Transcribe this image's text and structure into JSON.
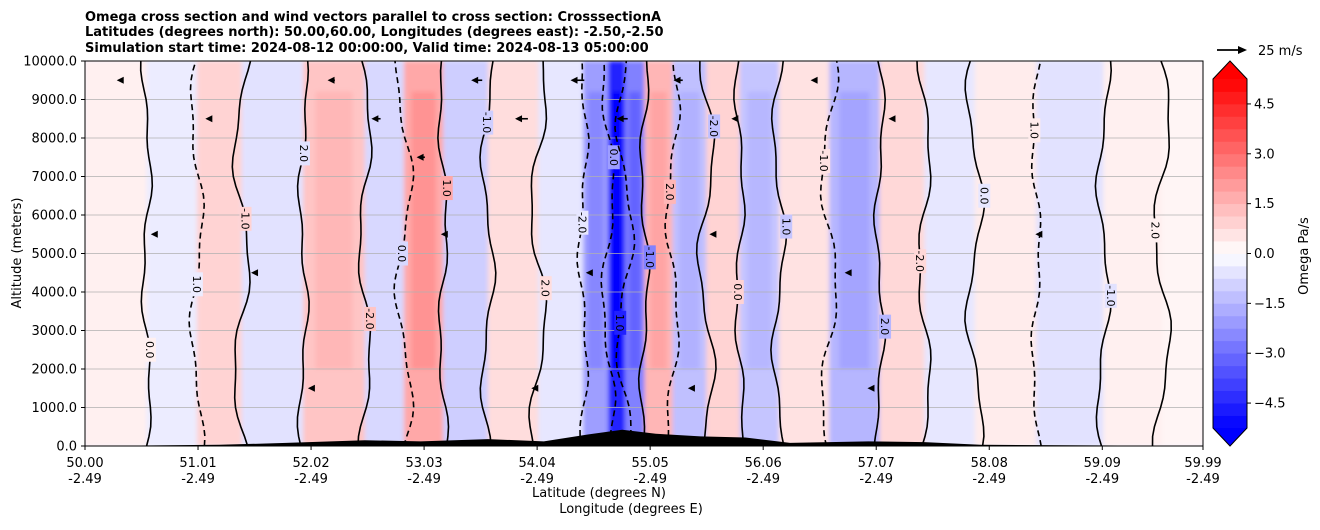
{
  "chart_data": {
    "type": "heatmap",
    "title_lines": [
      "Omega cross section and wind vectors parallel to cross section: CrosssectionA",
      "Latitudes (degrees north): 50.00,60.00, Longitudes (degrees east): -2.50,-2.50",
      "Simulation start time: 2024-08-12 00:00:00, Valid time: 2024-08-13 05:00:00"
    ],
    "ylabel": "Altitude (meters)",
    "xlabel_lines": [
      "Latitude (degrees N)",
      "Longitude (degrees E)"
    ],
    "ylim": [
      0,
      10000
    ],
    "y_ticks": [
      {
        "value": 0,
        "label": "0.0"
      },
      {
        "value": 1000,
        "label": "1000.0"
      },
      {
        "value": 2000,
        "label": "2000.0"
      },
      {
        "value": 3000,
        "label": "3000.0"
      },
      {
        "value": 4000,
        "label": "4000.0"
      },
      {
        "value": 5000,
        "label": "5000.0"
      },
      {
        "value": 6000,
        "label": "6000.0"
      },
      {
        "value": 7000,
        "label": "7000.0"
      },
      {
        "value": 8000,
        "label": "8000.0"
      },
      {
        "value": 9000,
        "label": "9000.0"
      },
      {
        "value": 10000,
        "label": "10000.0"
      }
    ],
    "xlim": [
      50.0,
      59.99
    ],
    "x_ticks": [
      {
        "lat": 50.0,
        "lat_label": "50.00",
        "lon_label": "-2.49"
      },
      {
        "lat": 51.01,
        "lat_label": "51.01",
        "lon_label": "-2.49"
      },
      {
        "lat": 52.02,
        "lat_label": "52.02",
        "lon_label": "-2.49"
      },
      {
        "lat": 53.03,
        "lat_label": "53.03",
        "lon_label": "-2.49"
      },
      {
        "lat": 54.04,
        "lat_label": "54.04",
        "lon_label": "-2.49"
      },
      {
        "lat": 55.05,
        "lat_label": "55.05",
        "lon_label": "-2.49"
      },
      {
        "lat": 56.06,
        "lat_label": "56.06",
        "lon_label": "-2.49"
      },
      {
        "lat": 57.07,
        "lat_label": "57.07",
        "lon_label": "-2.49"
      },
      {
        "lat": 58.08,
        "lat_label": "58.08",
        "lon_label": "-2.49"
      },
      {
        "lat": 59.09,
        "lat_label": "59.09",
        "lon_label": "-2.49"
      },
      {
        "lat": 59.99,
        "lat_label": "59.99",
        "lon_label": "-2.49"
      }
    ],
    "grid": "horizontal",
    "colorbar": {
      "label": "Omega Pa/s",
      "range": [
        -5.25,
        5.25
      ],
      "step": 0.375,
      "extend": "both",
      "ticks": [
        {
          "value": 4.5,
          "label": "4.5"
        },
        {
          "value": 3.0,
          "label": "3.0"
        },
        {
          "value": 1.5,
          "label": "1.5"
        },
        {
          "value": 0.0,
          "label": "0.0"
        },
        {
          "value": -1.5,
          "label": "−1.5"
        },
        {
          "value": -3.0,
          "label": "−3.0"
        },
        {
          "value": -4.5,
          "label": "−4.5"
        }
      ],
      "colors": {
        "negative": "#0000ff",
        "zero": "#ffffff",
        "positive": "#ff0000"
      }
    },
    "quiver_key": {
      "label": "25 m/s",
      "speed": 25
    },
    "omega_bands": [
      {
        "lat": 50.3,
        "omega": 0.3
      },
      {
        "lat": 50.8,
        "omega": -0.4
      },
      {
        "lat": 51.2,
        "omega": 0.9
      },
      {
        "lat": 51.6,
        "omega": -0.6
      },
      {
        "lat": 52.3,
        "omega": 1.2
      },
      {
        "lat": 52.7,
        "omega": -0.8
      },
      {
        "lat": 53.0,
        "omega": 1.8
      },
      {
        "lat": 53.4,
        "omega": -1.0
      },
      {
        "lat": 53.8,
        "omega": 0.7
      },
      {
        "lat": 54.3,
        "omega": -0.5
      },
      {
        "lat": 54.6,
        "omega": -2.0
      },
      {
        "lat": 54.75,
        "omega": -4.6
      },
      {
        "lat": 54.9,
        "omega": -2.6
      },
      {
        "lat": 55.1,
        "omega": 1.5
      },
      {
        "lat": 55.4,
        "omega": -1.3
      },
      {
        "lat": 55.7,
        "omega": 0.9
      },
      {
        "lat": 56.0,
        "omega": -1.2
      },
      {
        "lat": 56.4,
        "omega": 0.6
      },
      {
        "lat": 56.9,
        "omega": -1.5
      },
      {
        "lat": 57.3,
        "omega": 0.8
      },
      {
        "lat": 57.7,
        "omega": -0.5
      },
      {
        "lat": 58.2,
        "omega": 0.4
      },
      {
        "lat": 58.8,
        "omega": -0.6
      },
      {
        "lat": 59.4,
        "omega": 0.3
      },
      {
        "lat": 59.85,
        "omega": 0.2
      }
    ],
    "contour_labels": [
      "0.0",
      "1.0",
      "-1.0",
      "2.0",
      "-2.0"
    ],
    "wind_vectors": [
      {
        "lat": 50.3,
        "height": 9500,
        "u": -4
      },
      {
        "lat": 51.1,
        "height": 8500,
        "u": -6
      },
      {
        "lat": 52.2,
        "height": 9500,
        "u": -8
      },
      {
        "lat": 52.6,
        "height": 8500,
        "u": -10
      },
      {
        "lat": 53.0,
        "height": 7500,
        "u": -9
      },
      {
        "lat": 53.5,
        "height": 9500,
        "u": -12
      },
      {
        "lat": 53.9,
        "height": 8500,
        "u": -14
      },
      {
        "lat": 54.4,
        "height": 9500,
        "u": -15
      },
      {
        "lat": 54.8,
        "height": 8500,
        "u": -12
      },
      {
        "lat": 55.3,
        "height": 9500,
        "u": -10
      },
      {
        "lat": 55.8,
        "height": 8500,
        "u": -6
      },
      {
        "lat": 56.5,
        "height": 9500,
        "u": -4
      },
      {
        "lat": 57.2,
        "height": 8500,
        "u": -5
      },
      {
        "lat": 50.6,
        "height": 5500,
        "u": -3
      },
      {
        "lat": 51.5,
        "height": 4500,
        "u": -4
      },
      {
        "lat": 53.2,
        "height": 5500,
        "u": -5
      },
      {
        "lat": 54.5,
        "height": 4500,
        "u": -6
      },
      {
        "lat": 55.6,
        "height": 5500,
        "u": -5
      },
      {
        "lat": 56.8,
        "height": 4500,
        "u": -3
      },
      {
        "lat": 58.5,
        "height": 5500,
        "u": -2
      },
      {
        "lat": 52.0,
        "height": 1500,
        "u": -2
      },
      {
        "lat": 54.0,
        "height": 1500,
        "u": -3
      },
      {
        "lat": 55.4,
        "height": 1500,
        "u": -3
      },
      {
        "lat": 57.0,
        "height": 1500,
        "u": -2
      }
    ],
    "terrain": [
      {
        "lat": 50.0,
        "height": 0
      },
      {
        "lat": 51.2,
        "height": 30
      },
      {
        "lat": 51.8,
        "height": 80
      },
      {
        "lat": 52.5,
        "height": 150
      },
      {
        "lat": 53.0,
        "height": 120
      },
      {
        "lat": 53.6,
        "height": 180
      },
      {
        "lat": 54.1,
        "height": 120
      },
      {
        "lat": 54.5,
        "height": 300
      },
      {
        "lat": 54.8,
        "height": 420
      },
      {
        "lat": 55.1,
        "height": 320
      },
      {
        "lat": 55.5,
        "height": 250
      },
      {
        "lat": 55.9,
        "height": 220
      },
      {
        "lat": 56.3,
        "height": 80
      },
      {
        "lat": 57.0,
        "height": 120
      },
      {
        "lat": 57.5,
        "height": 100
      },
      {
        "lat": 58.0,
        "height": 30
      },
      {
        "lat": 59.99,
        "height": 0
      }
    ]
  }
}
